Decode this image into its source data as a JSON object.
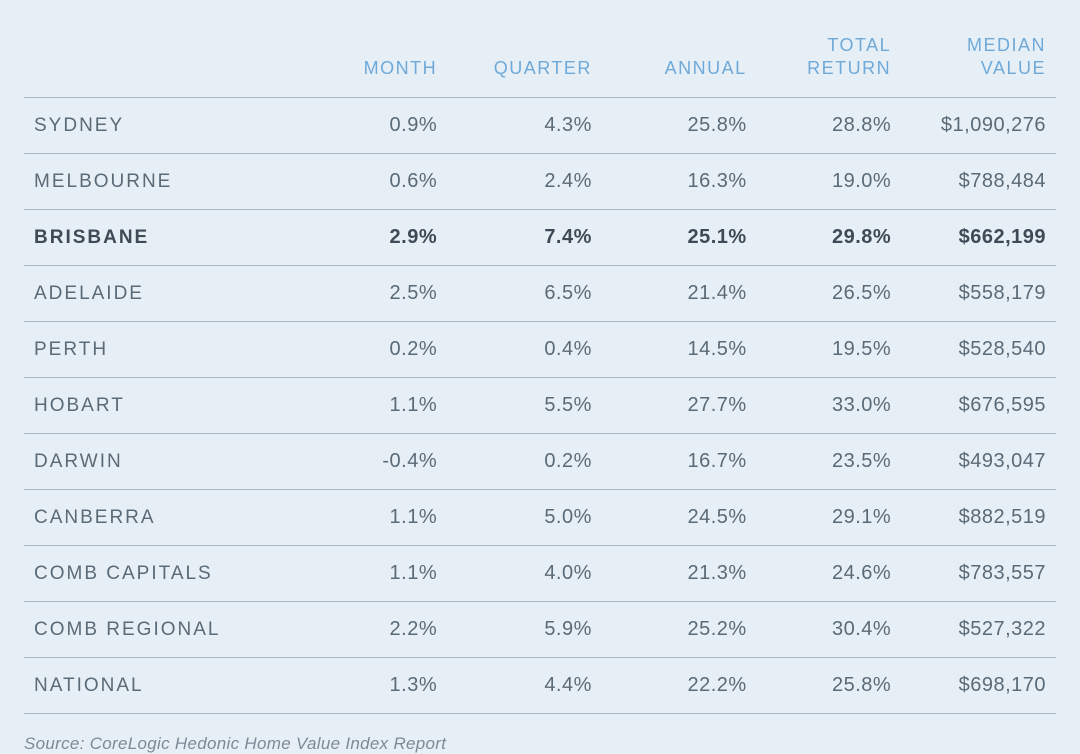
{
  "table": {
    "columns": [
      {
        "label": "",
        "class": "col-city"
      },
      {
        "label": "MONTH",
        "class": "col-month"
      },
      {
        "label": "QUARTER",
        "class": "col-qtr"
      },
      {
        "label": "ANNUAL",
        "class": "col-annual"
      },
      {
        "label": "TOTAL\nRETURN",
        "class": "col-total"
      },
      {
        "label": "MEDIAN\nVALUE",
        "class": "col-median"
      }
    ],
    "rows": [
      {
        "city": "SYDNEY",
        "month": "0.9%",
        "quarter": "4.3%",
        "annual": "25.8%",
        "total": "28.8%",
        "median": "$1,090,276",
        "highlight": false
      },
      {
        "city": "MELBOURNE",
        "month": "0.6%",
        "quarter": "2.4%",
        "annual": "16.3%",
        "total": "19.0%",
        "median": "$788,484",
        "highlight": false
      },
      {
        "city": "BRISBANE",
        "month": "2.9%",
        "quarter": "7.4%",
        "annual": "25.1%",
        "total": "29.8%",
        "median": "$662,199",
        "highlight": true
      },
      {
        "city": "ADELAIDE",
        "month": "2.5%",
        "quarter": "6.5%",
        "annual": "21.4%",
        "total": "26.5%",
        "median": "$558,179",
        "highlight": false
      },
      {
        "city": "PERTH",
        "month": "0.2%",
        "quarter": "0.4%",
        "annual": "14.5%",
        "total": "19.5%",
        "median": "$528,540",
        "highlight": false
      },
      {
        "city": "HOBART",
        "month": "1.1%",
        "quarter": "5.5%",
        "annual": "27.7%",
        "total": "33.0%",
        "median": "$676,595",
        "highlight": false
      },
      {
        "city": "DARWIN",
        "month": "-0.4%",
        "quarter": "0.2%",
        "annual": "16.7%",
        "total": "23.5%",
        "median": "$493,047",
        "highlight": false
      },
      {
        "city": "CANBERRA",
        "month": "1.1%",
        "quarter": "5.0%",
        "annual": "24.5%",
        "total": "29.1%",
        "median": "$882,519",
        "highlight": false
      },
      {
        "city": "COMB CAPITALS",
        "month": "1.1%",
        "quarter": "4.0%",
        "annual": "21.3%",
        "total": "24.6%",
        "median": "$783,557",
        "highlight": false
      },
      {
        "city": "COMB REGIONAL",
        "month": "2.2%",
        "quarter": "5.9%",
        "annual": "25.2%",
        "total": "30.4%",
        "median": "$527,322",
        "highlight": false
      },
      {
        "city": "NATIONAL",
        "month": "1.3%",
        "quarter": "4.4%",
        "annual": "22.2%",
        "total": "25.8%",
        "median": "$698,170",
        "highlight": false
      }
    ]
  },
  "source_text": "Source: CoreLogic Hedonic Home Value Index Report",
  "styling": {
    "background_color": "#e7eff6",
    "header_text_color": "#6fa9d8",
    "body_text_color": "#5a6a76",
    "border_color": "#a7b8c6",
    "highlight_text_color": "#3e4a55",
    "header_font_size": 18,
    "body_font_size": 20,
    "city_letter_spacing": 2,
    "row_padding_v": 16
  }
}
